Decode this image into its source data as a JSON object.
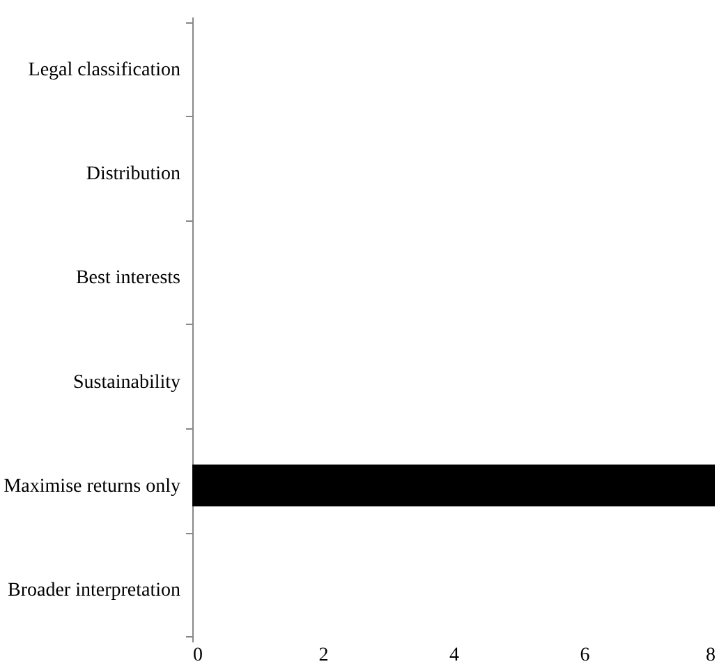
{
  "chart_data": {
    "type": "bar",
    "orientation": "horizontal",
    "categories": [
      "Legal classification",
      "Distribution",
      "Best interests",
      "Sustainability",
      "Maximise returns only",
      "Broader interpretation"
    ],
    "values": [
      0,
      0,
      0,
      0,
      8,
      0
    ],
    "color": "#000000",
    "xlim": [
      0,
      8
    ],
    "xticks": [
      0,
      2,
      4,
      6,
      8
    ],
    "grid": false
  }
}
